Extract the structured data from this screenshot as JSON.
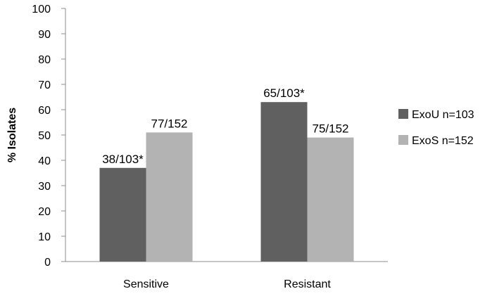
{
  "chart_data": {
    "type": "bar",
    "title": "",
    "xlabel": "",
    "ylabel": "% Isolates",
    "ylim": [
      0,
      100
    ],
    "yticks": [
      0,
      10,
      20,
      30,
      40,
      50,
      60,
      70,
      80,
      90,
      100
    ],
    "grid": false,
    "legend_position": "right",
    "categories": [
      "Sensitive",
      "Resistant"
    ],
    "series": [
      {
        "name": "ExoU n=103",
        "color": "#606060",
        "values": [
          37,
          63
        ],
        "labels": [
          "38/103*",
          "65/103*"
        ]
      },
      {
        "name": "ExoS n=152",
        "color": "#b3b3b3",
        "values": [
          51,
          49
        ],
        "labels": [
          "77/152",
          "75/152"
        ]
      }
    ]
  }
}
